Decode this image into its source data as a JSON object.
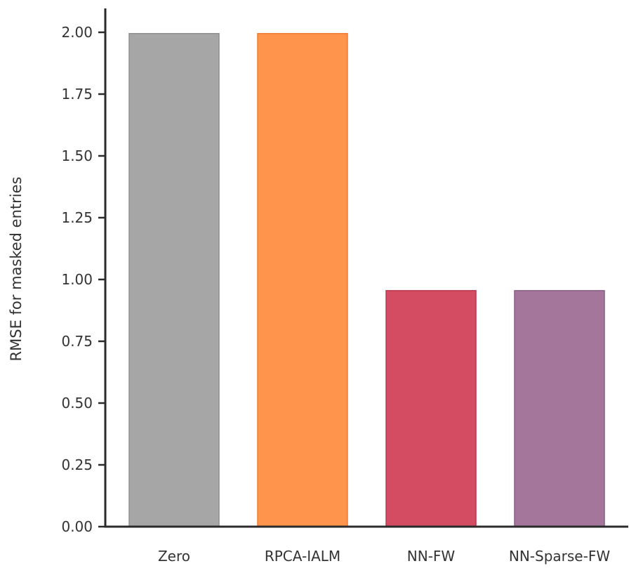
{
  "chart_data": {
    "type": "bar",
    "categories": [
      "Zero",
      "RPCA-IALM",
      "NN-FW",
      "NN-Sparse-FW"
    ],
    "values": [
      1.995,
      1.995,
      0.955,
      0.955
    ],
    "colors": [
      "#a6a6a6",
      "#ff944d",
      "#d44c62",
      "#a4769b"
    ],
    "edge_colors": [
      "#8f8f8f",
      "#f07b30",
      "#b8394f",
      "#8c5e85"
    ],
    "title": "",
    "xlabel": "",
    "ylabel": "RMSE for masked entries",
    "ylim": [
      0,
      2.1
    ],
    "yticks": [
      "0.00",
      "0.25",
      "0.50",
      "0.75",
      "1.00",
      "1.25",
      "1.50",
      "1.75",
      "2.00"
    ],
    "grid": false,
    "legend": "none"
  }
}
